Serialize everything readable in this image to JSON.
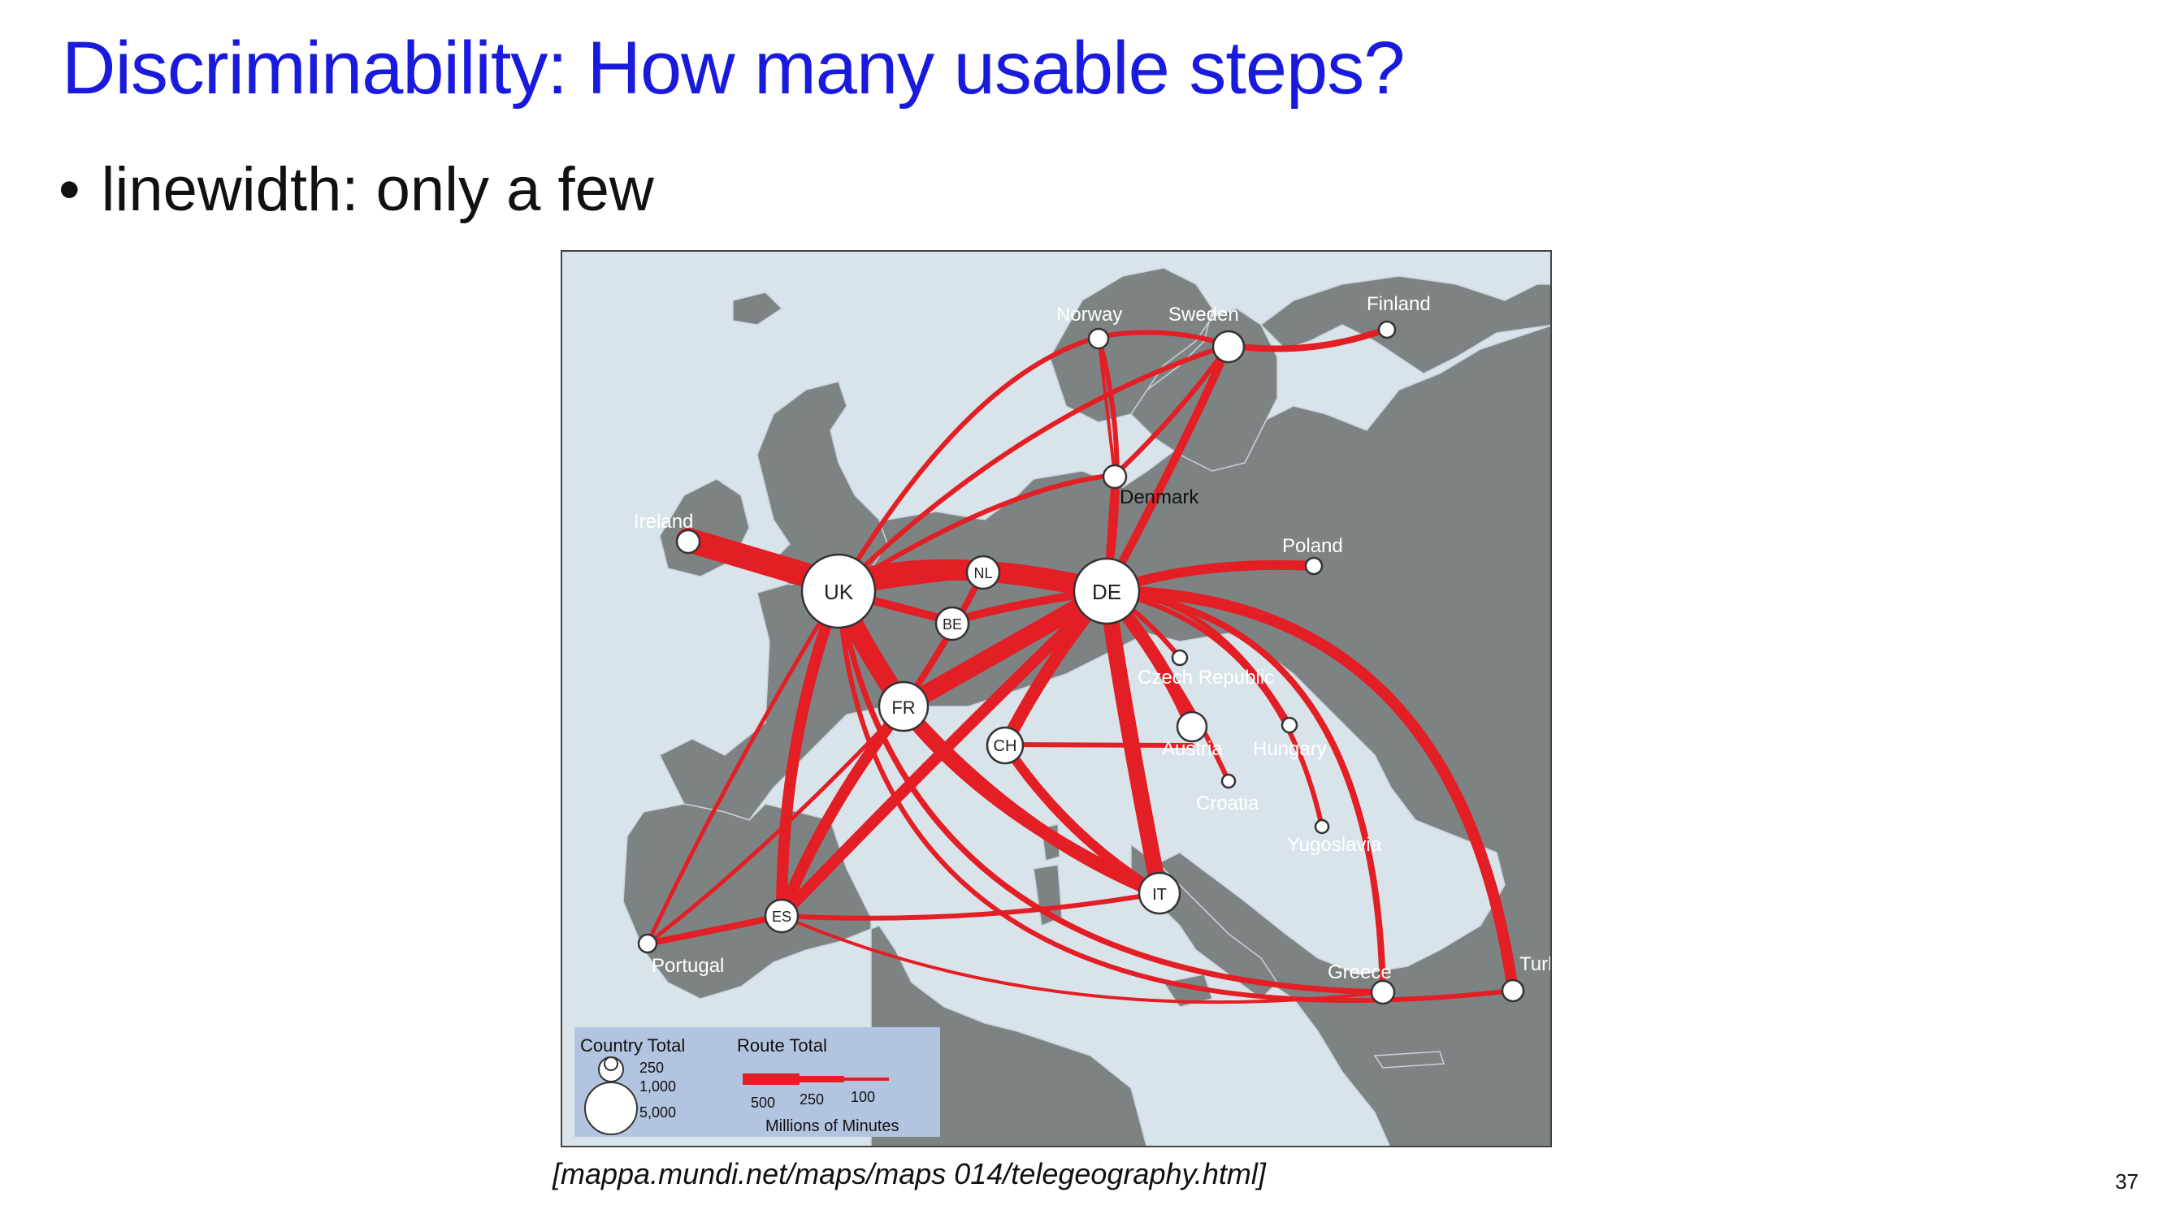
{
  "slide": {
    "title": "Discriminability: How many usable steps?",
    "bullet": "linewidth: only a few",
    "caption": "[mappa.mundi.net/maps/maps 014/telegeography.html]",
    "page_number": "37"
  },
  "map": {
    "colors": {
      "sea": "#d9e4ea",
      "land": "#7d8283",
      "border": "#c9d4da",
      "route": "#e31e24",
      "node_fill": "#ffffff",
      "node_stroke": "#333333",
      "legend_bg": "#b3c4e0"
    },
    "labels": {
      "norway": "Norway",
      "sweden": "Sweden",
      "finland": "Finland",
      "denmark": "Denmark",
      "ireland": "Ireland",
      "poland": "Poland",
      "czech": "Czech Republic",
      "austria": "Austria",
      "hungary": "Hungary",
      "croatia": "Croatia",
      "yugoslavia": "Yugoslavia",
      "portugal": "Portugal",
      "greece": "Greece",
      "turkey": "Turkey"
    },
    "node_codes": {
      "uk": "UK",
      "de": "DE",
      "fr": "FR",
      "nl": "NL",
      "be": "BE",
      "ch": "CH",
      "it": "IT",
      "es": "ES"
    },
    "legend": {
      "country_title": "Country Total",
      "country_values": [
        "250",
        "1,000",
        "5,000"
      ],
      "route_title": "Route Total",
      "route_values": [
        "500",
        "250",
        "100"
      ],
      "units": "Millions of Minutes"
    }
  }
}
